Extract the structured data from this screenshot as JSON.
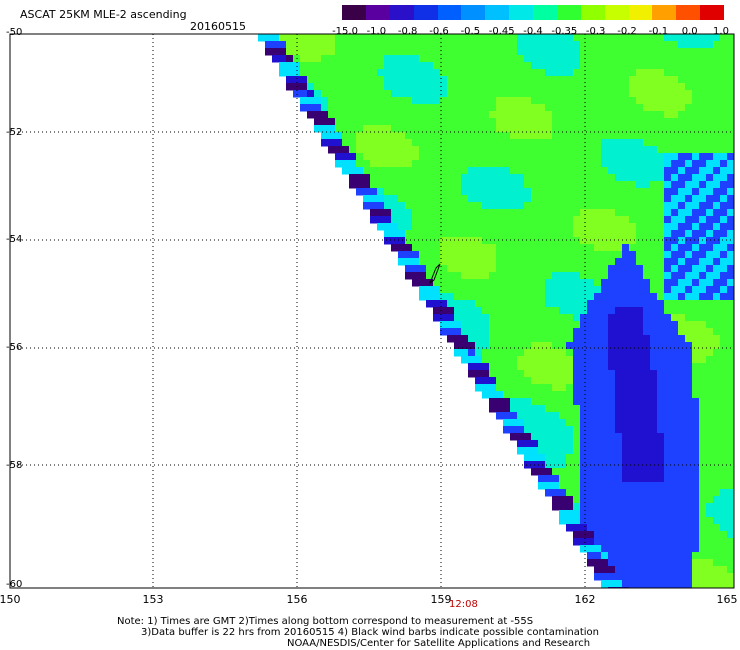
{
  "header": {
    "title": "ASCAT 25KM MLE-2 ascending",
    "date": "20160515"
  },
  "colorbar": {
    "colors": [
      "#3a0048",
      "#5a00a0",
      "#2a10c8",
      "#1030e8",
      "#0060ff",
      "#0090ff",
      "#00c0ff",
      "#00e8e8",
      "#00ffa0",
      "#30ff30",
      "#90ff00",
      "#c8ff00",
      "#f0f000",
      "#ffa000",
      "#ff5000",
      "#e00000"
    ],
    "labels": [
      "-15.0",
      "-1.0",
      "-0.8",
      "-0.6",
      "-0.5",
      "-0.45",
      "-0.4",
      "-0.35",
      "-0.3",
      "-0.2",
      "-0.1",
      "0.0",
      "1.0"
    ]
  },
  "axes": {
    "lat_labels": [
      "-50",
      "-52",
      "-54",
      "-56",
      "-58",
      "-60"
    ],
    "lon_labels": [
      "150",
      "153",
      "156",
      "159",
      "162",
      "165"
    ],
    "time_label": "12:08"
  },
  "notes": {
    "line1": "Note: 1) Times are GMT 2)Times along bottom correspond to measurement at -55S",
    "line2": "3)Data buffer is 22 hrs from 20160515 4) Black wind barbs indicate possible contamination",
    "line3": "NOAA/NESDIS/Center for Satellite Applications and Research"
  },
  "map": {
    "swath_colors": {
      "green": "#40ff30",
      "lightgreen": "#80ff20",
      "cyan": "#00f0d0",
      "cyan2": "#00e0ff",
      "blue": "#1e40ff",
      "darkblue": "#2010d0",
      "purple": "#380070"
    }
  }
}
